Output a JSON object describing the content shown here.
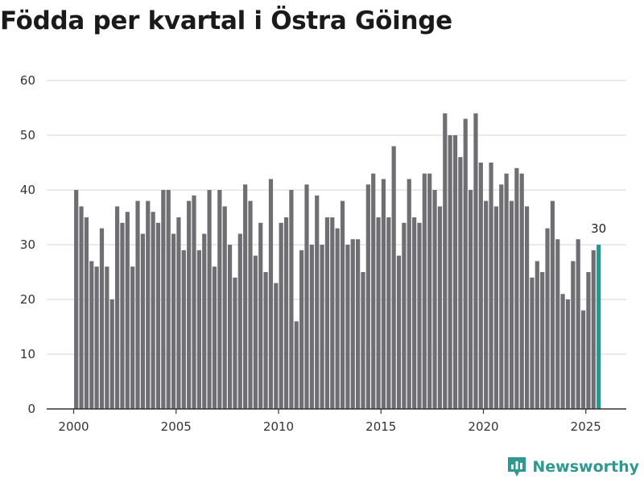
{
  "title": "Födda per kvartal i Östra Göinge",
  "brand": {
    "name": "Newsworthy",
    "icon": "newsworthy-logo-icon"
  },
  "colors": {
    "bar": "#6e6e73",
    "highlight": "#1a9c92",
    "grid": "#dddddd",
    "axis": "#333333",
    "brand": "#2e9a8f"
  },
  "chart_data": {
    "type": "bar",
    "title": "Födda per kvartal i Östra Göinge",
    "xlabel": "",
    "ylabel": "",
    "start_year": 2000,
    "periods_per_year": 4,
    "xticks": [
      "2000",
      "2005",
      "2010",
      "2015",
      "2020",
      "2025"
    ],
    "yticks": [
      0,
      10,
      20,
      30,
      40,
      50,
      60
    ],
    "ylim": [
      0,
      60
    ],
    "grid": true,
    "legend": "none",
    "highlight_last": true,
    "last_label": "30",
    "values": [
      40,
      37,
      35,
      27,
      26,
      33,
      26,
      20,
      37,
      34,
      36,
      26,
      38,
      32,
      38,
      36,
      34,
      40,
      40,
      32,
      35,
      29,
      38,
      39,
      29,
      32,
      40,
      26,
      40,
      37,
      30,
      24,
      32,
      41,
      38,
      28,
      34,
      25,
      42,
      23,
      34,
      35,
      40,
      16,
      29,
      41,
      30,
      39,
      30,
      35,
      35,
      33,
      38,
      30,
      31,
      31,
      25,
      41,
      43,
      35,
      42,
      35,
      48,
      28,
      34,
      42,
      35,
      34,
      43,
      43,
      40,
      37,
      54,
      50,
      50,
      46,
      53,
      40,
      54,
      45,
      38,
      45,
      37,
      41,
      43,
      38,
      44,
      43,
      37,
      24,
      27,
      25,
      33,
      38,
      31,
      21,
      20,
      27,
      31,
      18,
      25,
      29,
      30
    ]
  }
}
